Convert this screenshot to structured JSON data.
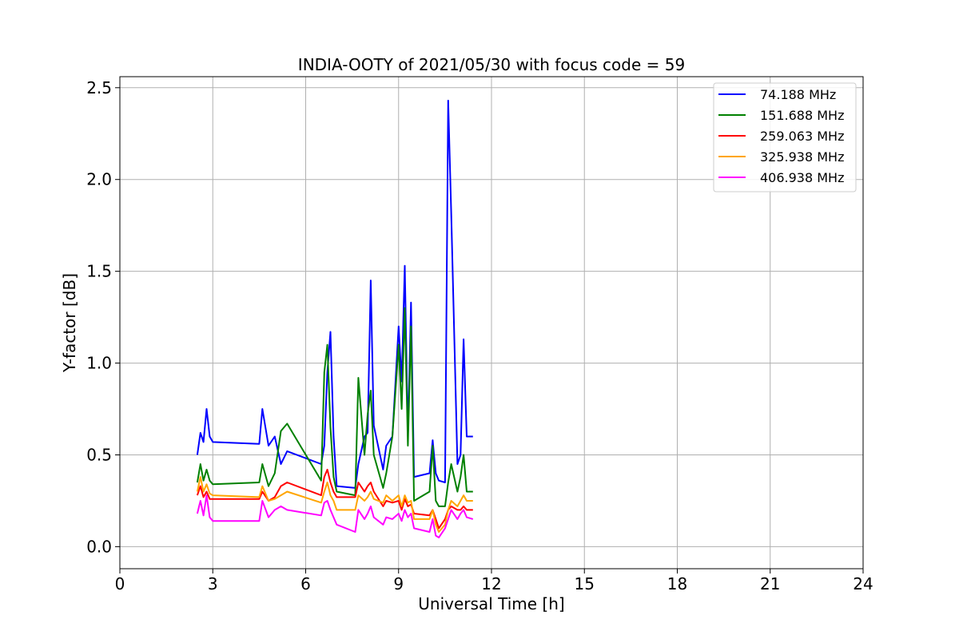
{
  "chart_data": {
    "type": "line",
    "title": "INDIA-OOTY of 2021/05/30 with focus code = 59",
    "xlabel": "Universal Time [h]",
    "ylabel": "Y-factor [dB]",
    "xlim": [
      0,
      24
    ],
    "ylim": [
      -0.12,
      2.56
    ],
    "xticks": [
      0,
      3,
      6,
      9,
      12,
      15,
      18,
      21,
      24
    ],
    "yticks": [
      0.0,
      0.5,
      1.0,
      1.5,
      2.0,
      2.5
    ],
    "xtick_labels": [
      "0",
      "3",
      "6",
      "9",
      "12",
      "15",
      "18",
      "21",
      "24"
    ],
    "ytick_labels": [
      "0.0",
      "0.5",
      "1.0",
      "1.5",
      "2.0",
      "2.5"
    ],
    "grid": true,
    "legend_position": "top-right",
    "series": [
      {
        "name": " 74.188 MHz",
        "color": "#0000ff",
        "x": [
          2.5,
          2.6,
          2.7,
          2.8,
          2.9,
          3.0,
          4.5,
          4.6,
          4.8,
          5.0,
          5.2,
          5.4,
          6.5,
          6.6,
          6.7,
          6.8,
          6.9,
          7.0,
          7.6,
          7.7,
          7.9,
          8.0,
          8.1,
          8.2,
          8.5,
          8.6,
          8.8,
          9.0,
          9.1,
          9.2,
          9.3,
          9.4,
          9.5,
          10.0,
          10.1,
          10.2,
          10.3,
          10.5,
          10.6,
          10.7,
          10.9,
          11.0,
          11.1,
          11.2,
          11.4
        ],
        "y": [
          0.5,
          0.62,
          0.57,
          0.75,
          0.6,
          0.57,
          0.56,
          0.75,
          0.55,
          0.6,
          0.45,
          0.52,
          0.45,
          0.55,
          0.95,
          1.17,
          0.6,
          0.33,
          0.32,
          0.45,
          0.6,
          0.62,
          1.45,
          0.66,
          0.42,
          0.55,
          0.6,
          1.2,
          0.9,
          1.53,
          0.6,
          1.33,
          0.38,
          0.4,
          0.58,
          0.4,
          0.36,
          0.35,
          2.43,
          1.82,
          0.45,
          0.5,
          1.13,
          0.6,
          0.6
        ]
      },
      {
        "name": "151.688 MHz",
        "color": "#008000",
        "x": [
          2.5,
          2.6,
          2.7,
          2.8,
          2.9,
          3.0,
          4.5,
          4.6,
          4.8,
          5.0,
          5.2,
          5.4,
          6.5,
          6.6,
          6.7,
          6.8,
          6.9,
          7.0,
          7.6,
          7.7,
          7.9,
          8.0,
          8.1,
          8.2,
          8.5,
          8.6,
          8.8,
          9.0,
          9.1,
          9.2,
          9.3,
          9.4,
          9.5,
          10.0,
          10.1,
          10.2,
          10.3,
          10.5,
          10.6,
          10.7,
          10.9,
          11.0,
          11.1,
          11.2,
          11.4
        ],
        "y": [
          0.35,
          0.45,
          0.36,
          0.42,
          0.36,
          0.34,
          0.35,
          0.45,
          0.33,
          0.4,
          0.63,
          0.67,
          0.36,
          0.95,
          1.1,
          0.65,
          0.38,
          0.3,
          0.28,
          0.92,
          0.5,
          0.72,
          0.85,
          0.5,
          0.32,
          0.4,
          0.6,
          1.1,
          0.75,
          1.3,
          0.55,
          1.2,
          0.25,
          0.3,
          0.55,
          0.25,
          0.22,
          0.22,
          0.35,
          0.45,
          0.3,
          0.38,
          0.5,
          0.3,
          0.3
        ]
      },
      {
        "name": "259.063 MHz",
        "color": "#ff0000",
        "x": [
          2.5,
          2.6,
          2.7,
          2.8,
          2.9,
          3.0,
          4.5,
          4.6,
          4.8,
          5.0,
          5.2,
          5.4,
          6.5,
          6.6,
          6.7,
          6.8,
          6.9,
          7.0,
          7.6,
          7.7,
          7.9,
          8.0,
          8.1,
          8.2,
          8.5,
          8.6,
          8.8,
          9.0,
          9.1,
          9.2,
          9.3,
          9.4,
          9.5,
          10.0,
          10.1,
          10.2,
          10.3,
          10.5,
          10.6,
          10.7,
          10.9,
          11.0,
          11.1,
          11.2,
          11.4
        ],
        "y": [
          0.28,
          0.33,
          0.27,
          0.3,
          0.26,
          0.26,
          0.26,
          0.3,
          0.25,
          0.27,
          0.33,
          0.35,
          0.28,
          0.38,
          0.42,
          0.35,
          0.3,
          0.27,
          0.27,
          0.35,
          0.3,
          0.33,
          0.35,
          0.3,
          0.22,
          0.25,
          0.24,
          0.25,
          0.2,
          0.26,
          0.22,
          0.23,
          0.18,
          0.17,
          0.2,
          0.15,
          0.1,
          0.15,
          0.2,
          0.22,
          0.2,
          0.2,
          0.22,
          0.2,
          0.2
        ]
      },
      {
        "name": "325.938 MHz",
        "color": "#ffa500",
        "x": [
          2.5,
          2.6,
          2.7,
          2.8,
          2.9,
          3.0,
          4.5,
          4.6,
          4.8,
          5.0,
          5.2,
          5.4,
          6.5,
          6.6,
          6.7,
          6.8,
          6.9,
          7.0,
          7.6,
          7.7,
          7.9,
          8.0,
          8.1,
          8.2,
          8.5,
          8.6,
          8.8,
          9.0,
          9.1,
          9.2,
          9.3,
          9.4,
          9.5,
          10.0,
          10.1,
          10.2,
          10.3,
          10.5,
          10.6,
          10.7,
          10.9,
          11.0,
          11.1,
          11.2,
          11.4
        ],
        "y": [
          0.3,
          0.38,
          0.3,
          0.34,
          0.29,
          0.28,
          0.27,
          0.33,
          0.25,
          0.26,
          0.28,
          0.3,
          0.24,
          0.3,
          0.35,
          0.28,
          0.25,
          0.2,
          0.2,
          0.28,
          0.25,
          0.27,
          0.3,
          0.26,
          0.24,
          0.28,
          0.25,
          0.28,
          0.22,
          0.28,
          0.24,
          0.25,
          0.15,
          0.15,
          0.2,
          0.12,
          0.08,
          0.12,
          0.2,
          0.25,
          0.22,
          0.25,
          0.28,
          0.25,
          0.25
        ]
      },
      {
        "name": "406.938 MHz",
        "color": "#ff00ff",
        "x": [
          2.5,
          2.6,
          2.7,
          2.8,
          2.9,
          3.0,
          4.5,
          4.6,
          4.8,
          5.0,
          5.2,
          5.4,
          6.5,
          6.6,
          6.7,
          6.8,
          6.9,
          7.0,
          7.6,
          7.7,
          7.9,
          8.0,
          8.1,
          8.2,
          8.5,
          8.6,
          8.8,
          9.0,
          9.1,
          9.2,
          9.3,
          9.4,
          9.5,
          10.0,
          10.1,
          10.2,
          10.3,
          10.5,
          10.6,
          10.7,
          10.9,
          11.0,
          11.1,
          11.2,
          11.4
        ],
        "y": [
          0.18,
          0.25,
          0.17,
          0.28,
          0.16,
          0.14,
          0.14,
          0.25,
          0.16,
          0.2,
          0.22,
          0.2,
          0.17,
          0.24,
          0.25,
          0.2,
          0.16,
          0.12,
          0.08,
          0.2,
          0.15,
          0.18,
          0.22,
          0.16,
          0.12,
          0.16,
          0.15,
          0.18,
          0.14,
          0.2,
          0.16,
          0.18,
          0.1,
          0.08,
          0.15,
          0.06,
          0.05,
          0.1,
          0.15,
          0.2,
          0.15,
          0.18,
          0.2,
          0.16,
          0.15
        ]
      }
    ]
  }
}
